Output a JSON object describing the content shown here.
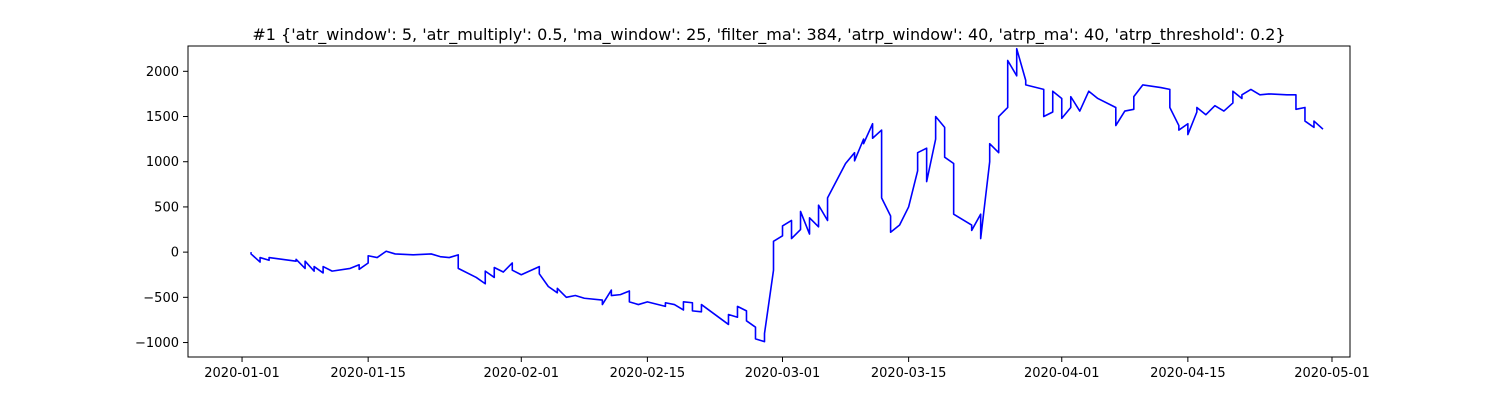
{
  "chart_data": {
    "type": "line",
    "title": "#1 {'atr_window': 5, 'atr_multiply': 0.5, 'ma_window': 25, 'filter_ma': 384, 'atrp_window': 40, 'atrp_ma': 40, 'atrp_threshold': 0.2}",
    "xlabel": "",
    "ylabel": "",
    "xlim": [
      "2019-12-26",
      "2020-05-03"
    ],
    "ylim": [
      -1160,
      2280
    ],
    "grid": false,
    "x_ticks": [
      "2020-01-01",
      "2020-01-15",
      "2020-02-01",
      "2020-02-15",
      "2020-03-01",
      "2020-03-15",
      "2020-04-01",
      "2020-04-15",
      "2020-05-01"
    ],
    "y_ticks": [
      -1000,
      -500,
      0,
      500,
      1000,
      1500,
      2000
    ],
    "series": [
      {
        "color": "#0000ff",
        "points": [
          [
            "2020-01-02",
            0
          ],
          [
            "2020-01-02",
            -20
          ],
          [
            "2020-01-03",
            -110
          ],
          [
            "2020-01-03",
            -60
          ],
          [
            "2020-01-04",
            -90
          ],
          [
            "2020-01-04",
            -60
          ],
          [
            "2020-01-07",
            -100
          ],
          [
            "2020-01-07",
            -80
          ],
          [
            "2020-01-08",
            -180
          ],
          [
            "2020-01-08",
            -100
          ],
          [
            "2020-01-09",
            -210
          ],
          [
            "2020-01-09",
            -160
          ],
          [
            "2020-01-10",
            -230
          ],
          [
            "2020-01-10",
            -160
          ],
          [
            "2020-01-11",
            -210
          ],
          [
            "2020-01-13",
            -180
          ],
          [
            "2020-01-14",
            -140
          ],
          [
            "2020-01-14",
            -190
          ],
          [
            "2020-01-15",
            -120
          ],
          [
            "2020-01-15",
            -40
          ],
          [
            "2020-01-16",
            -60
          ],
          [
            "2020-01-17",
            10
          ],
          [
            "2020-01-18",
            -20
          ],
          [
            "2020-01-20",
            -30
          ],
          [
            "2020-01-22",
            -20
          ],
          [
            "2020-01-23",
            -50
          ],
          [
            "2020-01-24",
            -60
          ],
          [
            "2020-01-25",
            -30
          ],
          [
            "2020-01-25",
            -180
          ],
          [
            "2020-01-27",
            -280
          ],
          [
            "2020-01-28",
            -350
          ],
          [
            "2020-01-28",
            -210
          ],
          [
            "2020-01-29",
            -280
          ],
          [
            "2020-01-29",
            -170
          ],
          [
            "2020-01-30",
            -220
          ],
          [
            "2020-01-31",
            -120
          ],
          [
            "2020-01-31",
            -200
          ],
          [
            "2020-02-01",
            -250
          ],
          [
            "2020-02-03",
            -160
          ],
          [
            "2020-02-03",
            -240
          ],
          [
            "2020-02-04",
            -380
          ],
          [
            "2020-02-05",
            -450
          ],
          [
            "2020-02-05",
            -400
          ],
          [
            "2020-02-06",
            -500
          ],
          [
            "2020-02-07",
            -480
          ],
          [
            "2020-02-08",
            -510
          ],
          [
            "2020-02-10",
            -530
          ],
          [
            "2020-02-10",
            -580
          ],
          [
            "2020-02-11",
            -420
          ],
          [
            "2020-02-11",
            -480
          ],
          [
            "2020-02-12",
            -470
          ],
          [
            "2020-02-13",
            -430
          ],
          [
            "2020-02-13",
            -550
          ],
          [
            "2020-02-14",
            -580
          ],
          [
            "2020-02-15",
            -550
          ],
          [
            "2020-02-17",
            -600
          ],
          [
            "2020-02-17",
            -560
          ],
          [
            "2020-02-18",
            -580
          ],
          [
            "2020-02-19",
            -640
          ],
          [
            "2020-02-19",
            -550
          ],
          [
            "2020-02-20",
            -560
          ],
          [
            "2020-02-20",
            -650
          ],
          [
            "2020-02-21",
            -660
          ],
          [
            "2020-02-21",
            -580
          ],
          [
            "2020-02-24",
            -800
          ],
          [
            "2020-02-24",
            -690
          ],
          [
            "2020-02-25",
            -720
          ],
          [
            "2020-02-25",
            -600
          ],
          [
            "2020-02-26",
            -650
          ],
          [
            "2020-02-26",
            -760
          ],
          [
            "2020-02-27",
            -830
          ],
          [
            "2020-02-27",
            -960
          ],
          [
            "2020-02-28",
            -990
          ],
          [
            "2020-02-28",
            -900
          ],
          [
            "2020-02-29",
            -200
          ],
          [
            "2020-02-29",
            120
          ],
          [
            "2020-03-01",
            180
          ],
          [
            "2020-03-01",
            290
          ],
          [
            "2020-03-02",
            350
          ],
          [
            "2020-03-02",
            150
          ],
          [
            "2020-03-03",
            250
          ],
          [
            "2020-03-03",
            450
          ],
          [
            "2020-03-04",
            200
          ],
          [
            "2020-03-04",
            380
          ],
          [
            "2020-03-05",
            280
          ],
          [
            "2020-03-05",
            520
          ],
          [
            "2020-03-06",
            350
          ],
          [
            "2020-03-06",
            600
          ],
          [
            "2020-03-08",
            980
          ],
          [
            "2020-03-09",
            1100
          ],
          [
            "2020-03-09",
            1010
          ],
          [
            "2020-03-10",
            1250
          ],
          [
            "2020-03-10",
            1200
          ],
          [
            "2020-03-11",
            1420
          ],
          [
            "2020-03-11",
            1260
          ],
          [
            "2020-03-12",
            1350
          ],
          [
            "2020-03-12",
            1080
          ],
          [
            "2020-03-12",
            600
          ],
          [
            "2020-03-13",
            400
          ],
          [
            "2020-03-13",
            220
          ],
          [
            "2020-03-14",
            300
          ],
          [
            "2020-03-15",
            500
          ],
          [
            "2020-03-16",
            900
          ],
          [
            "2020-03-16",
            1100
          ],
          [
            "2020-03-17",
            1150
          ],
          [
            "2020-03-17",
            780
          ],
          [
            "2020-03-18",
            1250
          ],
          [
            "2020-03-18",
            1500
          ],
          [
            "2020-03-19",
            1380
          ],
          [
            "2020-03-19",
            1050
          ],
          [
            "2020-03-20",
            980
          ],
          [
            "2020-03-20",
            420
          ],
          [
            "2020-03-22",
            300
          ],
          [
            "2020-03-22",
            240
          ],
          [
            "2020-03-23",
            420
          ],
          [
            "2020-03-23",
            150
          ],
          [
            "2020-03-24",
            1000
          ],
          [
            "2020-03-24",
            1200
          ],
          [
            "2020-03-25",
            1100
          ],
          [
            "2020-03-25",
            1500
          ],
          [
            "2020-03-26",
            1600
          ],
          [
            "2020-03-26",
            2120
          ],
          [
            "2020-03-27",
            1950
          ],
          [
            "2020-03-27",
            2250
          ],
          [
            "2020-03-28",
            1900
          ],
          [
            "2020-03-28",
            1850
          ],
          [
            "2020-03-30",
            1800
          ],
          [
            "2020-03-30",
            1500
          ],
          [
            "2020-03-31",
            1550
          ],
          [
            "2020-03-31",
            1780
          ],
          [
            "2020-04-01",
            1700
          ],
          [
            "2020-04-01",
            1480
          ],
          [
            "2020-04-02",
            1600
          ],
          [
            "2020-04-02",
            1720
          ],
          [
            "2020-04-03",
            1560
          ],
          [
            "2020-04-04",
            1780
          ],
          [
            "2020-04-05",
            1700
          ],
          [
            "2020-04-07",
            1600
          ],
          [
            "2020-04-07",
            1400
          ],
          [
            "2020-04-08",
            1560
          ],
          [
            "2020-04-09",
            1580
          ],
          [
            "2020-04-09",
            1720
          ],
          [
            "2020-04-10",
            1850
          ],
          [
            "2020-04-12",
            1820
          ],
          [
            "2020-04-13",
            1800
          ],
          [
            "2020-04-13",
            1600
          ],
          [
            "2020-04-14",
            1400
          ],
          [
            "2020-04-14",
            1350
          ],
          [
            "2020-04-15",
            1420
          ],
          [
            "2020-04-15",
            1300
          ],
          [
            "2020-04-16",
            1550
          ],
          [
            "2020-04-16",
            1600
          ],
          [
            "2020-04-17",
            1520
          ],
          [
            "2020-04-18",
            1620
          ],
          [
            "2020-04-19",
            1560
          ],
          [
            "2020-04-20",
            1650
          ],
          [
            "2020-04-20",
            1780
          ],
          [
            "2020-04-21",
            1700
          ],
          [
            "2020-04-21",
            1740
          ],
          [
            "2020-04-22",
            1800
          ],
          [
            "2020-04-23",
            1740
          ],
          [
            "2020-04-24",
            1750
          ],
          [
            "2020-04-26",
            1740
          ],
          [
            "2020-04-27",
            1740
          ],
          [
            "2020-04-27",
            1580
          ],
          [
            "2020-04-28",
            1600
          ],
          [
            "2020-04-28",
            1450
          ],
          [
            "2020-04-29",
            1380
          ],
          [
            "2020-04-29",
            1450
          ],
          [
            "2020-04-30",
            1360
          ]
        ]
      }
    ]
  }
}
